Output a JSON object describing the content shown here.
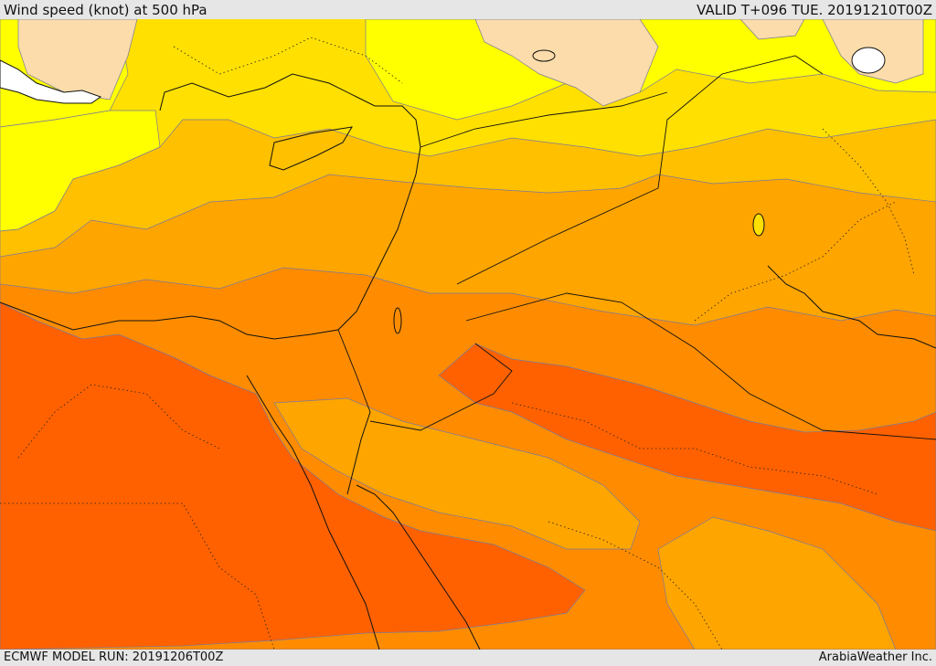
{
  "header": {
    "title": "Wind speed (knot) at 500 hPa",
    "valid": "VALID T+096 TUE. 20191210T00Z"
  },
  "footer": {
    "run": "ECMWF MODEL RUN: 20191206T00Z",
    "credit": "ArabiaWeather Inc."
  },
  "palette": {
    "band_lt_30": "#ffff00",
    "band_30_40": "#ffe000",
    "band_40_50": "#ffc000",
    "band_50_60": "#ffa500",
    "band_60_70": "#ff8c00",
    "band_70_80": "#ff6100",
    "land_low": "#fbdcaa",
    "border": "#111111"
  }
}
